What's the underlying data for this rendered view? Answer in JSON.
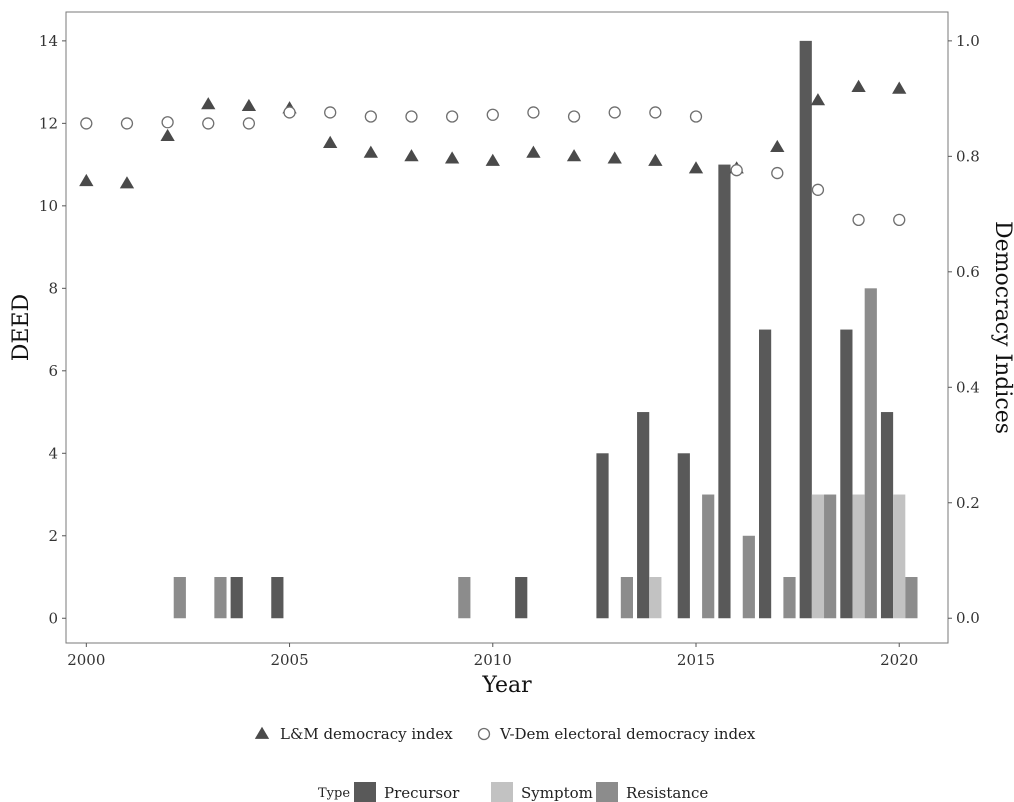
{
  "chart_data": {
    "type": "bar",
    "xlabel": "Year",
    "ylabel_left": "DEED",
    "ylabel_right": "Democracy Indices",
    "xlim": [
      1999.5,
      2021.2
    ],
    "ylim_left": [
      -0.6,
      14.7
    ],
    "ylim_right": [
      -0.0429,
      1.05
    ],
    "x_ticks": [
      2000,
      2005,
      2010,
      2015,
      2020
    ],
    "y_ticks_left": [
      0,
      2,
      4,
      6,
      8,
      10,
      12,
      14
    ],
    "y_ticks_right": [
      0.0,
      0.2,
      0.4,
      0.6,
      0.8,
      1.0
    ],
    "y_tick_labels_right": [
      "0.0",
      "0.2",
      "0.4",
      "0.6",
      "0.8",
      "1.0"
    ],
    "grid": false,
    "legend_placement": "bottom",
    "bar_legend_title": "Type",
    "bar_series": [
      {
        "name": "Precursor",
        "color": "#595959",
        "points": [
          {
            "x": 2004,
            "y": 1
          },
          {
            "x": 2005,
            "y": 1
          },
          {
            "x": 2011,
            "y": 1
          },
          {
            "x": 2013,
            "y": 4
          },
          {
            "x": 2014,
            "y": 5
          },
          {
            "x": 2015,
            "y": 4
          },
          {
            "x": 2016,
            "y": 11
          },
          {
            "x": 2017,
            "y": 7
          },
          {
            "x": 2018,
            "y": 14
          },
          {
            "x": 2019,
            "y": 7
          },
          {
            "x": 2020,
            "y": 5
          }
        ]
      },
      {
        "name": "Symptom",
        "color": "#c2c2c2",
        "points": [
          {
            "x": 2014,
            "y": 1
          },
          {
            "x": 2018,
            "y": 3
          },
          {
            "x": 2019,
            "y": 3
          },
          {
            "x": 2020,
            "y": 3
          }
        ]
      },
      {
        "name": "Resistance",
        "color": "#8c8c8c",
        "points": [
          {
            "x": 2002,
            "y": 1
          },
          {
            "x": 2003,
            "y": 1
          },
          {
            "x": 2009,
            "y": 1
          },
          {
            "x": 2013,
            "y": 1
          },
          {
            "x": 2015,
            "y": 3
          },
          {
            "x": 2016,
            "y": 2
          },
          {
            "x": 2017,
            "y": 1
          },
          {
            "x": 2018,
            "y": 3
          },
          {
            "x": 2019,
            "y": 8
          },
          {
            "x": 2020,
            "y": 1
          }
        ]
      }
    ],
    "point_series": [
      {
        "name": "L&M democracy index",
        "marker": "triangle",
        "color": "#4a4a4a",
        "axis": "right",
        "x": [
          2000,
          2001,
          2002,
          2003,
          2004,
          2005,
          2006,
          2007,
          2008,
          2009,
          2010,
          2011,
          2012,
          2013,
          2014,
          2015,
          2016,
          2017,
          2018,
          2019,
          2020
        ],
        "y": [
          0.757,
          0.753,
          0.835,
          0.89,
          0.887,
          0.883,
          0.823,
          0.806,
          0.8,
          0.796,
          0.792,
          0.806,
          0.8,
          0.796,
          0.792,
          0.779,
          0.779,
          0.816,
          0.897,
          0.92,
          0.917
        ]
      },
      {
        "name": "V-Dem electoral democracy index",
        "marker": "open-circle",
        "color": "#6f6f6f",
        "axis": "right",
        "x": [
          2000,
          2001,
          2002,
          2003,
          2004,
          2005,
          2006,
          2007,
          2008,
          2009,
          2010,
          2011,
          2012,
          2013,
          2014,
          2015,
          2016,
          2017,
          2018,
          2019,
          2020
        ],
        "y": [
          0.857,
          0.857,
          0.859,
          0.857,
          0.857,
          0.876,
          0.876,
          0.869,
          0.869,
          0.869,
          0.872,
          0.876,
          0.869,
          0.876,
          0.876,
          0.869,
          0.776,
          0.771,
          0.742,
          0.69,
          0.69
        ]
      }
    ]
  }
}
